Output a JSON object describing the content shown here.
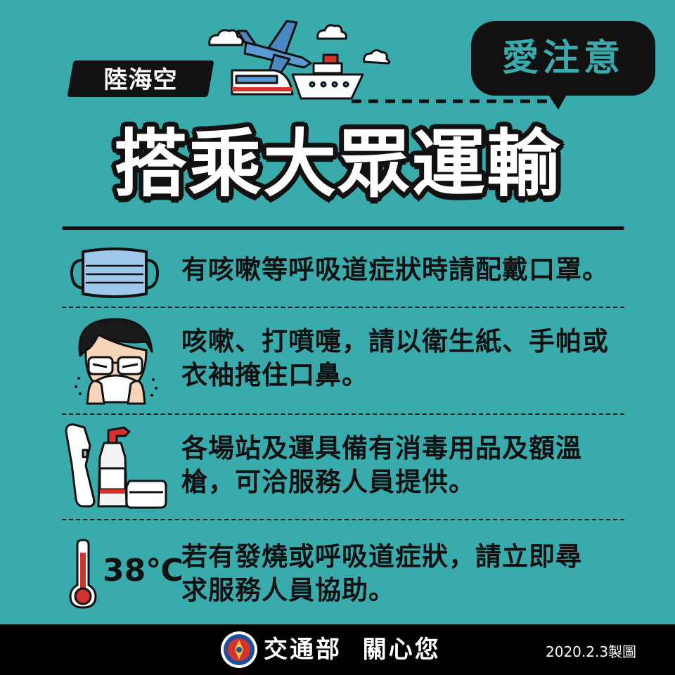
{
  "tag_label": "陸海空",
  "bubble_label": "愛注意",
  "title": "搭乘大眾運輸",
  "items": [
    {
      "lines": [
        "有咳嗽等呼吸道症狀時請配戴口罩。"
      ],
      "icon": "face-mask-icon"
    },
    {
      "lines": [
        "咳嗽、打噴嚏，請以衛生紙、手帕或",
        "衣袖掩住口鼻。"
      ],
      "icon": "sneezing-person-icon"
    },
    {
      "lines": [
        "各場站及運具備有消毒用品及額溫",
        "槍，可洽服務人員提供。"
      ],
      "icon": "thermometer-gun-and-spray-icon"
    },
    {
      "lines": [
        "若有發燒或呼吸道症狀，請立即尋",
        "求服務人員協助。"
      ],
      "icon": "thermometer-icon"
    }
  ],
  "temperature_label": "38℃",
  "footer": {
    "text": "交通部  關心您",
    "date": "2020.2.3製圖"
  },
  "colors": {
    "background": "#3aabad",
    "dark": "#111111",
    "accent_red": "#d4322e"
  }
}
